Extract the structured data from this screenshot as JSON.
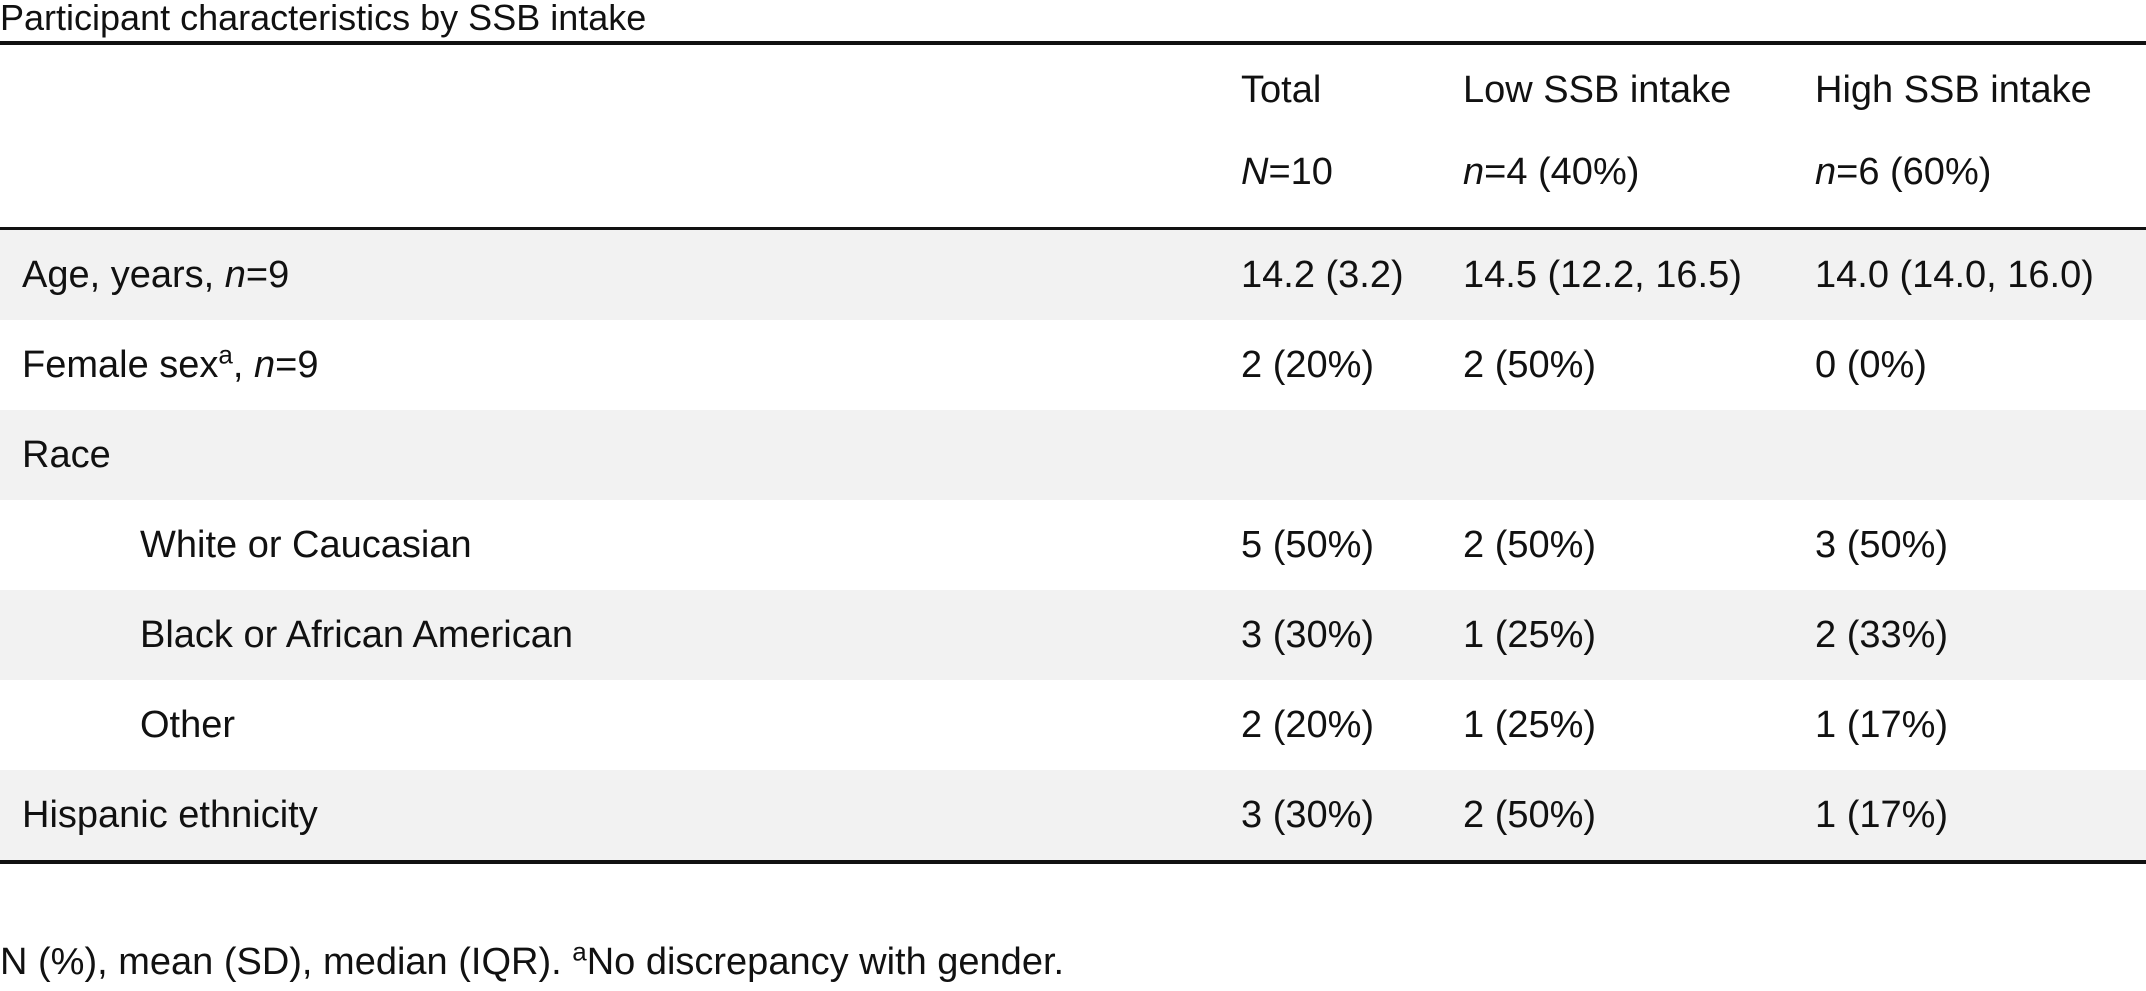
{
  "caption": "Participant characteristics by SSB intake",
  "columns": [
    {
      "label": "Total",
      "n_symbol": "N",
      "n_value": "=10"
    },
    {
      "label": "Low SSB intake",
      "n_symbol": "n",
      "n_value": "=4 (40%)"
    },
    {
      "label": "High SSB intake",
      "n_symbol": "n",
      "n_value": "=6 (60%)"
    }
  ],
  "rows": [
    {
      "label": "Age, years, ",
      "label_sup": "",
      "n_suffix_symbol": "n",
      "n_suffix_value": "=9",
      "values": [
        "14.2 (3.2)",
        "14.5 (12.2, 16.5)",
        "14.0 (14.0, 16.0)"
      ]
    },
    {
      "label": "Female sex",
      "label_sup": "a",
      "label_after_sup": ", ",
      "n_suffix_symbol": "n",
      "n_suffix_value": "=9",
      "values": [
        "2 (20%)",
        "2 (50%)",
        "0 (0%)"
      ]
    },
    {
      "label": "Race",
      "values": [
        "",
        "",
        ""
      ]
    },
    {
      "label": "White or Caucasian",
      "values": [
        "5 (50%)",
        "2 (50%)",
        "3 (50%)"
      ]
    },
    {
      "label": "Black or African American",
      "values": [
        "3 (30%)",
        "1 (25%)",
        "2 (33%)"
      ]
    },
    {
      "label": "Other",
      "values": [
        "2 (20%)",
        "1 (25%)",
        "1 (17%)"
      ]
    },
    {
      "label": "Hispanic ethnicity",
      "values": [
        "3 (30%)",
        "2 (50%)",
        "1 (17%)"
      ]
    }
  ],
  "footnote": {
    "text": "N (%), mean (SD), median (IQR). ",
    "sup": "a",
    "after": "No discrepancy with gender."
  }
}
